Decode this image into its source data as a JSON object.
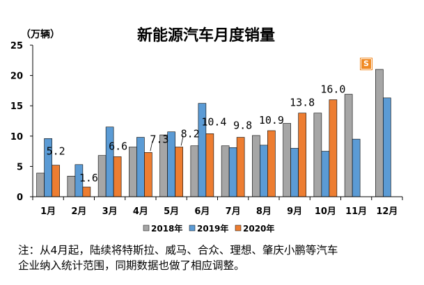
{
  "chart_data": {
    "type": "bar",
    "title": "新能源汽车月度销量",
    "unit_label": "（万辆）",
    "categories": [
      "1月",
      "2月",
      "3月",
      "4月",
      "5月",
      "6月",
      "7月",
      "8月",
      "9月",
      "10月",
      "11月",
      "12月"
    ],
    "ylim": [
      0,
      25
    ],
    "yticks": [
      0,
      5,
      10,
      15,
      20,
      25
    ],
    "grid": false,
    "legend_position": "bottom",
    "series": [
      {
        "name": "2018年",
        "color": "#a6a6a6",
        "values": [
          3.9,
          3.4,
          6.8,
          8.2,
          10.2,
          8.4,
          8.4,
          10.1,
          12.1,
          13.8,
          16.9,
          21.0
        ]
      },
      {
        "name": "2019年",
        "color": "#5b9bd5",
        "values": [
          9.6,
          5.3,
          11.5,
          9.8,
          10.7,
          15.4,
          8.1,
          8.5,
          8.0,
          7.5,
          9.5,
          16.3
        ]
      },
      {
        "name": "2020年",
        "color": "#ed7d31",
        "values": [
          5.2,
          1.6,
          6.6,
          7.3,
          8.2,
          10.4,
          9.8,
          10.9,
          13.8,
          16.0,
          null,
          null
        ]
      }
    ],
    "data_labels": {
      "series": "2020年",
      "values": [
        "5.2",
        "1.6",
        "6.6",
        "7.3",
        "8.2",
        "10.4",
        "9.8",
        "10.9",
        "13.8",
        "16.0",
        null,
        null
      ]
    }
  },
  "note": {
    "line1": "注：从4月起，陆续将特斯拉、威马、合众、理想、肇庆小鹏等汽车",
    "line2": "企业纳入统计范围，同期数据也做了相应调整。"
  },
  "watermark": {
    "letter": "S"
  }
}
